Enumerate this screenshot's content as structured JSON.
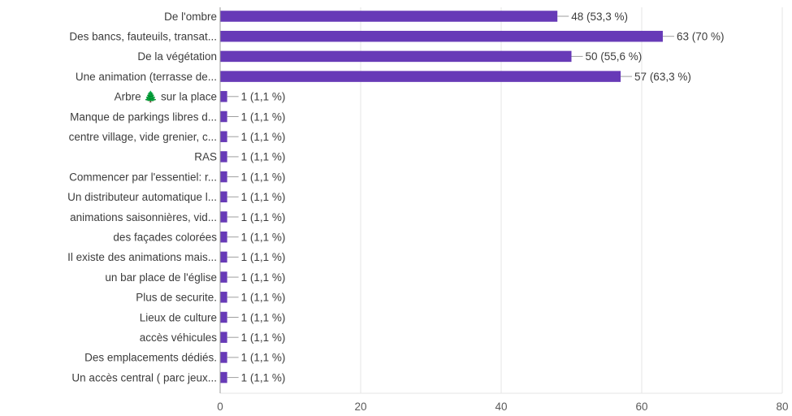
{
  "chart_data": {
    "type": "bar",
    "orientation": "horizontal",
    "categories": [
      "De l'ombre",
      "Des bancs, fauteuils, transat...",
      "De la végétation",
      "Une animation (terrasse de...",
      "Arbre 🌲 sur la place",
      "Manque de parkings libres d...",
      "centre village, vide grenier, c...",
      "RAS",
      "Commencer par l'essentiel: r...",
      "Un distributeur automatique l...",
      "animations saisonnières, vid...",
      "des façades colorées",
      "Il existe des animations mais...",
      "un bar place de l'église",
      "Plus de securite.",
      "Lieux de culture",
      "accès véhicules",
      "Des emplacements dédiés.",
      "Un accès central ( parc jeux..."
    ],
    "values": [
      48,
      63,
      50,
      57,
      1,
      1,
      1,
      1,
      1,
      1,
      1,
      1,
      1,
      1,
      1,
      1,
      1,
      1,
      1
    ],
    "value_labels": [
      "48 (53,3 %)",
      "63 (70 %)",
      "50 (55,6 %)",
      "57 (63,3 %)",
      "1 (1,1 %)",
      "1 (1,1 %)",
      "1 (1,1 %)",
      "1 (1,1 %)",
      "1 (1,1 %)",
      "1 (1,1 %)",
      "1 (1,1 %)",
      "1 (1,1 %)",
      "1 (1,1 %)",
      "1 (1,1 %)",
      "1 (1,1 %)",
      "1 (1,1 %)",
      "1 (1,1 %)",
      "1 (1,1 %)",
      "1 (1,1 %)"
    ],
    "xlim": [
      0,
      80
    ],
    "x_ticks": [
      0,
      20,
      40,
      60,
      80
    ],
    "grid": true,
    "bar_color": "#673ab7",
    "gridline_color": "#e6e6e6",
    "leader_color": "#9e9e9e",
    "axis_line_color": "#9e9e9e",
    "title": "",
    "xlabel": "",
    "ylabel": ""
  }
}
